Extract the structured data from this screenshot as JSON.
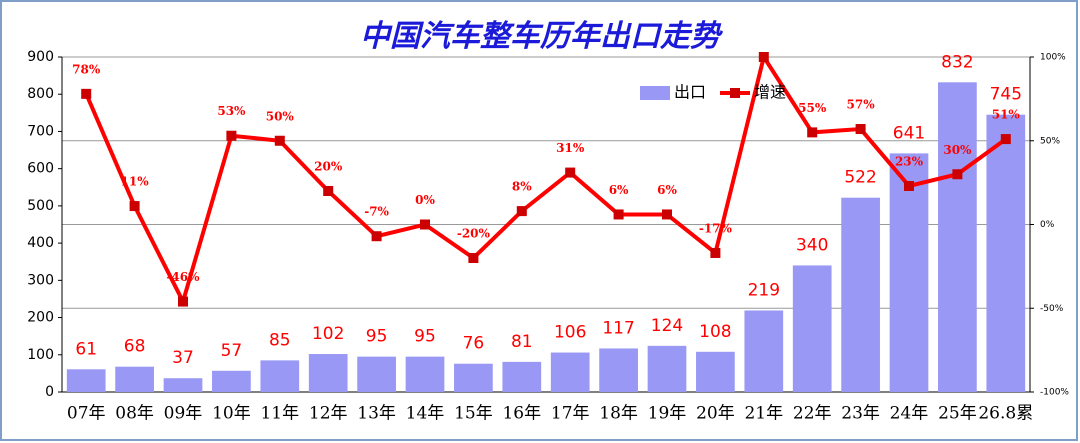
{
  "chart_data": {
    "type": "bar-line",
    "title": "中国汽车整车历年出口走势",
    "categories": [
      "07年",
      "08年",
      "09年",
      "10年",
      "11年",
      "12年",
      "13年",
      "14年",
      "15年",
      "16年",
      "17年",
      "18年",
      "19年",
      "20年",
      "21年",
      "22年",
      "23年",
      "24年",
      "25年",
      "26.8累"
    ],
    "series": [
      {
        "name": "出口",
        "type": "bar",
        "color": "#9999f5",
        "values": [
          61,
          68,
          37,
          57,
          85,
          102,
          95,
          95,
          76,
          81,
          106,
          117,
          124,
          108,
          219,
          340,
          522,
          641,
          832,
          745
        ]
      },
      {
        "name": "增速",
        "type": "line",
        "axis": "y2",
        "color": "#ff0000",
        "values": [
          78,
          11,
          -46,
          53,
          50,
          20,
          -7,
          0,
          -20,
          8,
          31,
          6,
          6,
          -17,
          100,
          55,
          57,
          23,
          30,
          51
        ],
        "value_labels": [
          "78%",
          "11%",
          "-46%",
          "53%",
          "50%",
          "20%",
          "-7%",
          "0%",
          "-20%",
          "8%",
          "31%",
          "6%",
          "6%",
          "-17%",
          null,
          "55%",
          "57%",
          "23%",
          "30%",
          "51%"
        ]
      }
    ],
    "ylim": [
      0,
      900
    ],
    "yticks": [
      0,
      100,
      200,
      300,
      400,
      500,
      600,
      700,
      800,
      900
    ],
    "y2lim": [
      -100,
      100
    ],
    "y2ticks": [
      {
        "value": -100,
        "label": "-100%"
      },
      {
        "value": -50,
        "label": "-50%"
      },
      {
        "value": 0,
        "label": "0%"
      },
      {
        "value": 50,
        "label": "50%"
      },
      {
        "value": 100,
        "label": "100%"
      }
    ],
    "grid": true,
    "legend": "top-right"
  }
}
